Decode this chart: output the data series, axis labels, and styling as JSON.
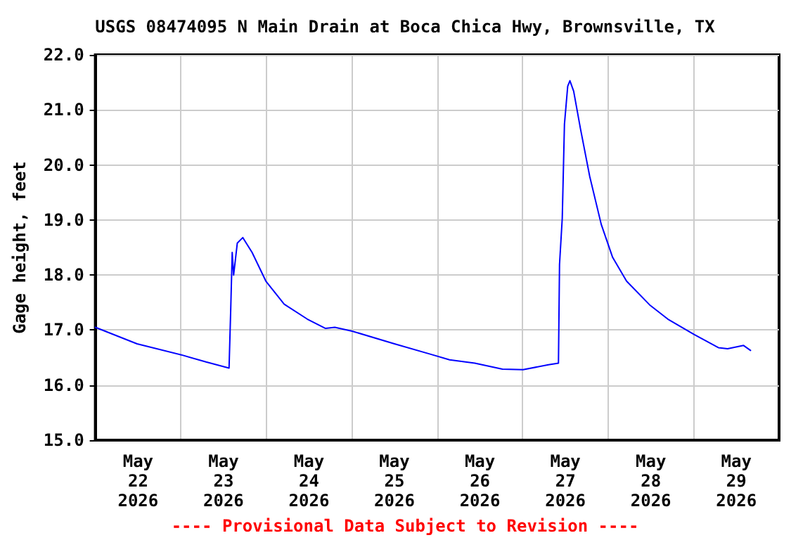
{
  "chart_data": {
    "type": "line",
    "title": "USGS 08474095 N Main Drain at Boca Chica Hwy, Brownsville, TX",
    "ylabel": "Gage height, feet",
    "annotations": [
      "---- Provisional Data Subject to Revision ----"
    ],
    "x": [
      "2026-05-22T00:00",
      "2026-05-22T11:43",
      "2026-05-23T00:07",
      "2026-05-23T07:05",
      "2026-05-23T13:33",
      "2026-05-23T14:02",
      "2026-05-23T14:26",
      "2026-05-23T14:50",
      "2026-05-23T15:52",
      "2026-05-23T17:25",
      "2026-05-23T20:01",
      "2026-05-23T23:53",
      "2026-05-24T05:02",
      "2026-05-24T11:30",
      "2026-05-24T16:39",
      "2026-05-24T19:15",
      "2026-05-25T00:07",
      "2026-05-25T12:00",
      "2026-05-25T21:41",
      "2026-05-26T03:29",
      "2026-05-26T10:34",
      "2026-05-26T18:19",
      "2026-05-27T00:07",
      "2026-05-27T07:15",
      "2026-05-27T10:03",
      "2026-05-27T10:21",
      "2026-05-27T11:07",
      "2026-05-27T11:44",
      "2026-05-27T12:39",
      "2026-05-27T13:16",
      "2026-05-27T14:19",
      "2026-05-27T16:15",
      "2026-05-27T18:50",
      "2026-05-27T22:04",
      "2026-05-28T01:16",
      "2026-05-28T05:10",
      "2026-05-28T11:37",
      "2026-05-28T16:45",
      "2026-05-29T00:07",
      "2026-05-29T06:58",
      "2026-05-29T09:33",
      "2026-05-29T14:02",
      "2026-05-29T15:59"
    ],
    "series": [
      {
        "color": "#0000ff",
        "values": [
          17.05,
          16.75,
          16.55,
          16.42,
          16.31,
          17.41,
          18.41,
          18.0,
          18.58,
          18.68,
          18.41,
          17.89,
          17.47,
          17.2,
          17.03,
          17.05,
          16.98,
          16.75,
          16.57,
          16.46,
          16.4,
          16.29,
          16.28,
          16.37,
          16.4,
          18.19,
          19.03,
          20.74,
          21.43,
          21.53,
          21.34,
          20.65,
          19.79,
          18.92,
          18.32,
          17.89,
          17.46,
          17.2,
          16.92,
          16.68,
          16.66,
          16.72,
          16.63
        ]
      }
    ],
    "xlim": [
      "2026-05-22T00:00",
      "2026-05-30T00:00"
    ],
    "xticks": [
      {
        "value": "2026-05-22T12:00",
        "label": "May\n22\n2026"
      },
      {
        "value": "2026-05-23T12:00",
        "label": "May\n23\n2026"
      },
      {
        "value": "2026-05-24T12:00",
        "label": "May\n24\n2026"
      },
      {
        "value": "2026-05-25T12:00",
        "label": "May\n25\n2026"
      },
      {
        "value": "2026-05-26T12:00",
        "label": "May\n26\n2026"
      },
      {
        "value": "2026-05-27T12:00",
        "label": "May\n27\n2026"
      },
      {
        "value": "2026-05-28T12:00",
        "label": "May\n28\n2026"
      },
      {
        "value": "2026-05-29T12:00",
        "label": "May\n29\n2026"
      },
      {
        "value": "2026-05-23T00:00",
        "label": null
      },
      {
        "value": "2026-05-24T00:00",
        "label": null
      },
      {
        "value": "2026-05-25T00:00",
        "label": null
      },
      {
        "value": "2026-05-26T00:00",
        "label": null
      },
      {
        "value": "2026-05-27T00:00",
        "label": null
      },
      {
        "value": "2026-05-28T00:00",
        "label": null
      },
      {
        "value": "2026-05-29T00:00",
        "label": null
      }
    ],
    "ylim": [
      15,
      22
    ],
    "yticks": [
      {
        "value": 15,
        "label": "15.0"
      },
      {
        "value": 16,
        "label": "16.0"
      },
      {
        "value": 17,
        "label": "17.0"
      },
      {
        "value": 18,
        "label": "18.0"
      },
      {
        "value": 19,
        "label": "19.0"
      },
      {
        "value": 20,
        "label": "20.0"
      },
      {
        "value": 21,
        "label": "21.0"
      },
      {
        "value": 22,
        "label": "22.0"
      }
    ],
    "grid": true,
    "marker": "none",
    "line_style": "solid"
  }
}
